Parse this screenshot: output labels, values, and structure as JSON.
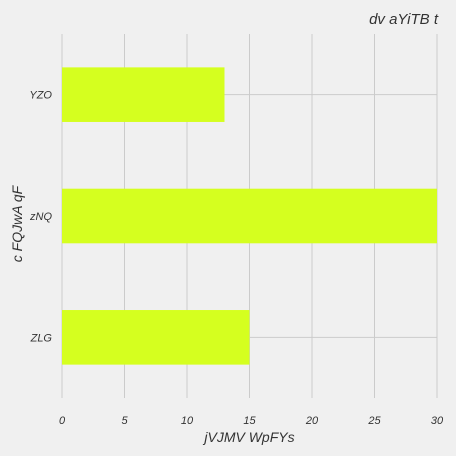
{
  "chart_data": {
    "type": "bar",
    "orientation": "horizontal",
    "title": "dv aYiTB t",
    "xlabel": "jVJMV WpFYs",
    "ylabel": "c FQJwA qF",
    "categories": [
      "YZO",
      "zNQ",
      "ZLG"
    ],
    "values": [
      13,
      30,
      15
    ],
    "xlim": [
      0,
      30
    ],
    "xticks": [
      0,
      5,
      10,
      15,
      20,
      25,
      30
    ],
    "grid": true,
    "legend": "none",
    "colors": {
      "bar": "#d5ff1f",
      "background": "#f0f0f0",
      "grid": "#cbcbcb",
      "text": "#333333"
    }
  }
}
